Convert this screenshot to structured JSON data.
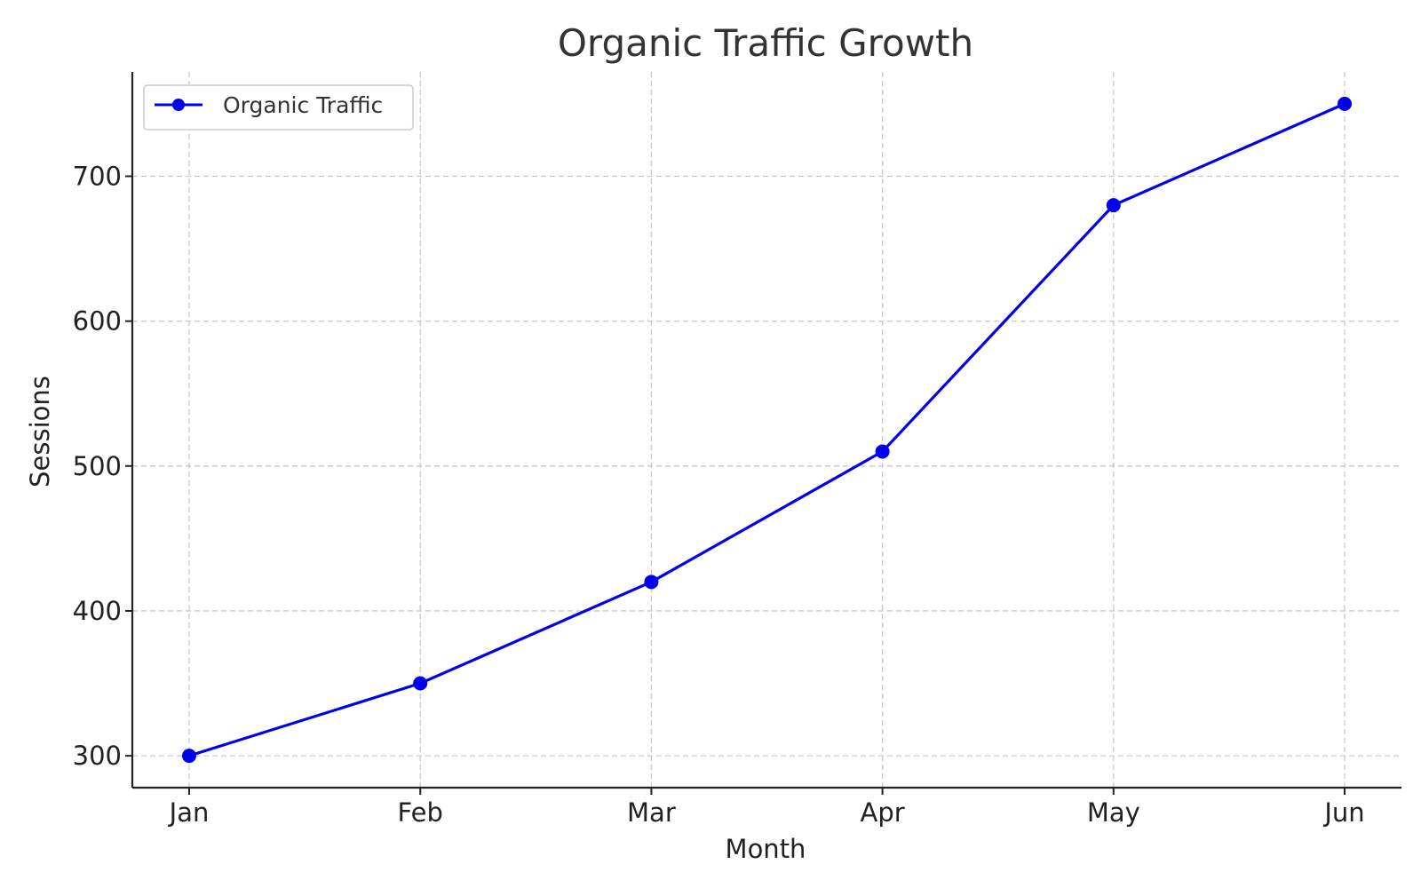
{
  "chart_data": {
    "type": "line",
    "title": "Organic Traffic Growth",
    "xlabel": "Month",
    "ylabel": "Sessions",
    "categories": [
      "Jan",
      "Feb",
      "Mar",
      "Apr",
      "May",
      "Jun"
    ],
    "series": [
      {
        "name": "Organic Traffic",
        "values": [
          300,
          350,
          420,
          510,
          680,
          750
        ],
        "color": "#0000ee",
        "marker": "circle"
      }
    ],
    "y_ticks": [
      300,
      400,
      500,
      600,
      700
    ],
    "ylim": [
      278,
      772
    ],
    "grid": true,
    "legend_position": "upper-left"
  }
}
